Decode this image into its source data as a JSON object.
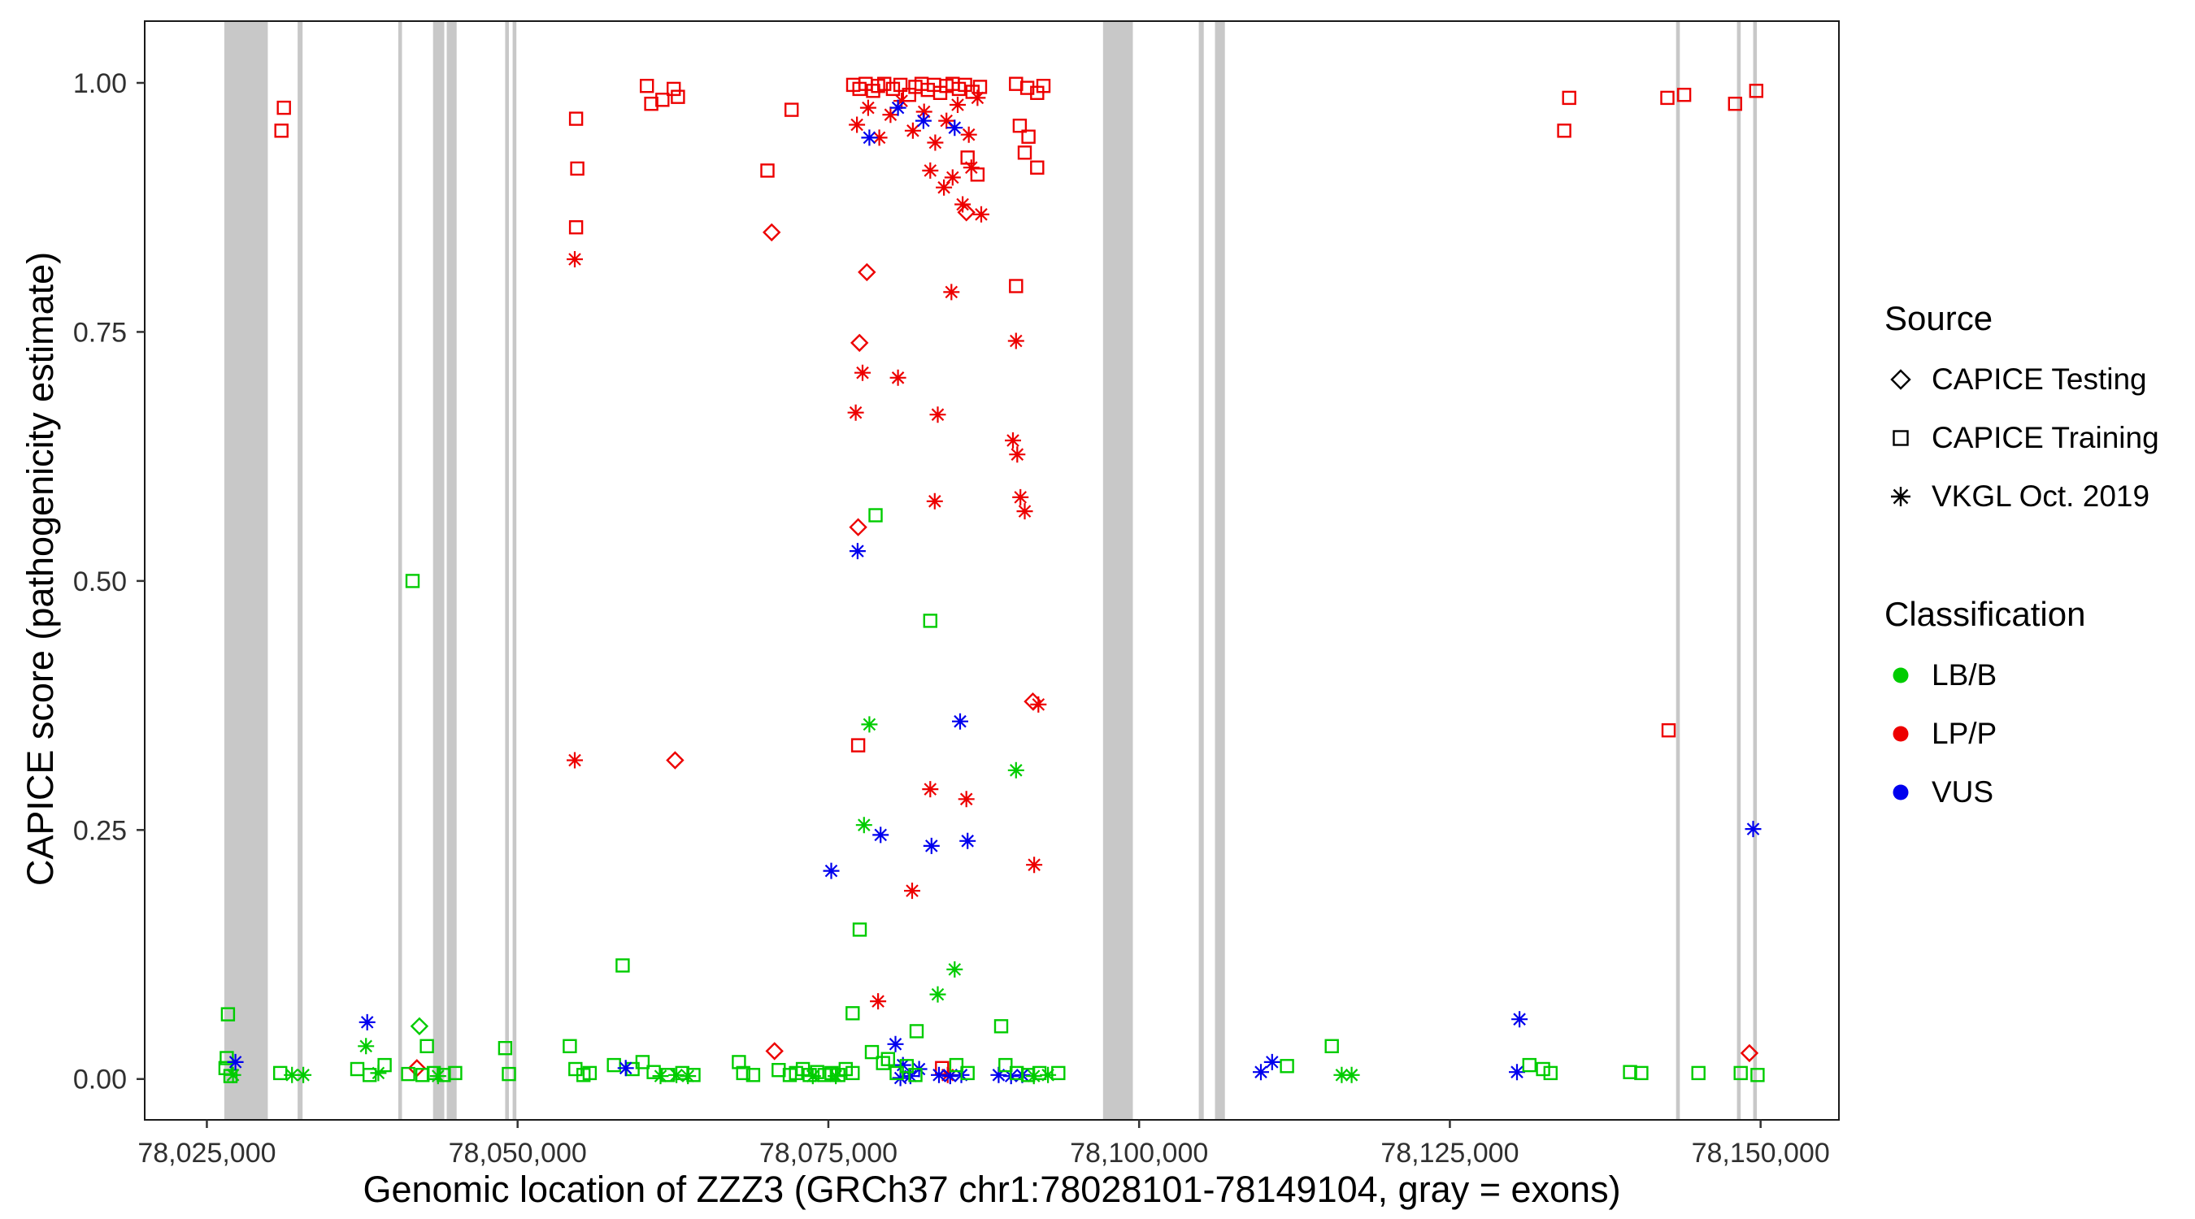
{
  "legend": {
    "source_title": "Source",
    "source_items": [
      {
        "label": "CAPICE Testing",
        "marker": "diamond"
      },
      {
        "label": "CAPICE Training",
        "marker": "square"
      },
      {
        "label": "VKGL Oct. 2019",
        "marker": "asterisk"
      }
    ],
    "classification_title": "Classification",
    "classification_items": [
      {
        "label": "LB/B",
        "color": "#00CC00"
      },
      {
        "label": "LP/P",
        "color": "#ED0000"
      },
      {
        "label": "VUS",
        "color": "#0000EE"
      }
    ]
  },
  "chart_data": {
    "type": "scatter",
    "title": "",
    "xlabel": "Genomic location of ZZZ3 (GRCh37 chr1:78028101-78149104, gray = exons)",
    "ylabel": "CAPICE score (pathogenicity estimate)",
    "xlim": [
      78020000,
      78156300
    ],
    "ylim": [
      -0.041,
      1.062
    ],
    "x_ticks": [
      78025000,
      78050000,
      78075000,
      78100000,
      78125000,
      78150000
    ],
    "x_tick_labels": [
      "78,025,000",
      "78,050,000",
      "78,075,000",
      "78,100,000",
      "78,125,000",
      "78,150,000"
    ],
    "y_ticks": [
      0,
      0.25,
      0.5,
      0.75,
      1.0
    ],
    "y_tick_labels": [
      "0.00",
      "0.25",
      "0.50",
      "0.75",
      "1.00"
    ],
    "grid": "off",
    "legend_position": "right",
    "exon_color": "#C8C8C8",
    "colors": {
      "b": "#00CC00",
      "p": "#ED0000",
      "u": "#0000EE"
    },
    "source_markers": {
      "t": "diamond",
      "r": "square",
      "v": "asterisk"
    },
    "source_names": {
      "t": "CAPICE Testing",
      "r": "CAPICE Training",
      "v": "VKGL Oct. 2019"
    },
    "class_names": {
      "b": "LB/B",
      "p": "LP/P",
      "u": "VUS"
    },
    "exons": [
      [
        78026400,
        78029900
      ],
      [
        78032300,
        78032700
      ],
      [
        78040400,
        78040700
      ],
      [
        78043200,
        78044100
      ],
      [
        78044300,
        78045100
      ],
      [
        78049000,
        78049300
      ],
      [
        78049600,
        78049900
      ],
      [
        78097100,
        78099500
      ],
      [
        78104800,
        78105200
      ],
      [
        78106100,
        78106900
      ],
      [
        78143200,
        78143500
      ],
      [
        78148100,
        78148400
      ],
      [
        78149400,
        78149700
      ]
    ],
    "points_format": [
      "genomic_position",
      "capice_score",
      "source_code",
      "classification_code"
    ],
    "points": [
      [
        78026700,
        0.065,
        "r",
        "b"
      ],
      [
        78026600,
        0.021,
        "r",
        "b"
      ],
      [
        78026500,
        0.011,
        "r",
        "b"
      ],
      [
        78026900,
        0.003,
        "r",
        "b"
      ],
      [
        78027300,
        0.017,
        "v",
        "u"
      ],
      [
        78027100,
        0.004,
        "v",
        "b"
      ],
      [
        78030900,
        0.006,
        "r",
        "b"
      ],
      [
        78031850,
        0.004,
        "v",
        "b"
      ],
      [
        78032760,
        0.004,
        "v",
        "b"
      ],
      [
        78031200,
        0.975,
        "r",
        "p"
      ],
      [
        78031000,
        0.952,
        "r",
        "p"
      ],
      [
        78037900,
        0.057,
        "v",
        "u"
      ],
      [
        78037800,
        0.033,
        "v",
        "b"
      ],
      [
        78037100,
        0.01,
        "r",
        "b"
      ],
      [
        78038100,
        0.004,
        "r",
        "b"
      ],
      [
        78038800,
        0.006,
        "v",
        "b"
      ],
      [
        78039300,
        0.014,
        "r",
        "b"
      ],
      [
        78041550,
        0.5,
        "r",
        "b"
      ],
      [
        78042100,
        0.053,
        "t",
        "b"
      ],
      [
        78042700,
        0.033,
        "r",
        "b"
      ],
      [
        78041900,
        0.011,
        "t",
        "p"
      ],
      [
        78041200,
        0.005,
        "r",
        "b"
      ],
      [
        78042350,
        0.004,
        "r",
        "b"
      ],
      [
        78043260,
        0.006,
        "r",
        "b"
      ],
      [
        78044060,
        0.004,
        "r",
        "b"
      ],
      [
        78044980,
        0.006,
        "r",
        "b"
      ],
      [
        78043600,
        0.003,
        "v",
        "b"
      ],
      [
        78049000,
        0.031,
        "r",
        "b"
      ],
      [
        78049300,
        0.005,
        "r",
        "b"
      ],
      [
        78054700,
        0.964,
        "r",
        "p"
      ],
      [
        78054800,
        0.914,
        "r",
        "p"
      ],
      [
        78054700,
        0.855,
        "r",
        "p"
      ],
      [
        78054600,
        0.823,
        "v",
        "p"
      ],
      [
        78054600,
        0.32,
        "v",
        "p"
      ],
      [
        78054200,
        0.033,
        "r",
        "b"
      ],
      [
        78054650,
        0.01,
        "r",
        "b"
      ],
      [
        78055300,
        0.004,
        "r",
        "b"
      ],
      [
        78055800,
        0.006,
        "r",
        "b"
      ],
      [
        78058450,
        0.114,
        "r",
        "b"
      ],
      [
        78060400,
        0.997,
        "r",
        "p"
      ],
      [
        78060750,
        0.979,
        "r",
        "p"
      ],
      [
        78061650,
        0.983,
        "r",
        "p"
      ],
      [
        78062560,
        0.994,
        "r",
        "p"
      ],
      [
        78062900,
        0.986,
        "r",
        "p"
      ],
      [
        78062670,
        0.32,
        "t",
        "p"
      ],
      [
        78057750,
        0.014,
        "r",
        "b"
      ],
      [
        78059250,
        0.01,
        "r",
        "b"
      ],
      [
        78060050,
        0.017,
        "r",
        "b"
      ],
      [
        78060950,
        0.007,
        "r",
        "b"
      ],
      [
        78062100,
        0.004,
        "r",
        "b"
      ],
      [
        78063250,
        0.006,
        "r",
        "b"
      ],
      [
        78064150,
        0.004,
        "r",
        "b"
      ],
      [
        78058700,
        0.011,
        "v",
        "u"
      ],
      [
        78061500,
        0.003,
        "v",
        "b"
      ],
      [
        78062780,
        0.004,
        "v",
        "b"
      ],
      [
        78063700,
        0.003,
        "v",
        "b"
      ],
      [
        78067800,
        0.017,
        "r",
        "b"
      ],
      [
        78068150,
        0.006,
        "r",
        "b"
      ],
      [
        78068950,
        0.004,
        "r",
        "b"
      ],
      [
        78070100,
        0.912,
        "r",
        "p"
      ],
      [
        78070440,
        0.85,
        "t",
        "p"
      ],
      [
        78072040,
        0.973,
        "r",
        "p"
      ],
      [
        78070670,
        0.028,
        "t",
        "p"
      ],
      [
        78071000,
        0.009,
        "r",
        "b"
      ],
      [
        78071900,
        0.004,
        "r",
        "b"
      ],
      [
        78072400,
        0.006,
        "r",
        "b"
      ],
      [
        78072950,
        0.01,
        "r",
        "b"
      ],
      [
        78073500,
        0.004,
        "r",
        "b"
      ],
      [
        78074100,
        0.007,
        "r",
        "b"
      ],
      [
        78074700,
        0.004,
        "r",
        "b"
      ],
      [
        78075250,
        0.006,
        "r",
        "b"
      ],
      [
        78075800,
        0.004,
        "r",
        "b"
      ],
      [
        78076400,
        0.01,
        "r",
        "b"
      ],
      [
        78076950,
        0.006,
        "r",
        "b"
      ],
      [
        78073750,
        0.003,
        "v",
        "b"
      ],
      [
        78075600,
        0.003,
        "v",
        "b"
      ],
      [
        78075230,
        0.209,
        "v",
        "u"
      ],
      [
        78076950,
        0.066,
        "r",
        "b"
      ],
      [
        78077520,
        0.15,
        "r",
        "b"
      ],
      [
        78077400,
        0.335,
        "r",
        "p"
      ],
      [
        78077400,
        0.554,
        "t",
        "p"
      ],
      [
        78077350,
        0.53,
        "v",
        "u"
      ],
      [
        78077500,
        0.739,
        "t",
        "p"
      ],
      [
        78077750,
        0.709,
        "v",
        "p"
      ],
      [
        78077200,
        0.669,
        "v",
        "p"
      ],
      [
        78078100,
        0.81,
        "t",
        "p"
      ],
      [
        78078800,
        0.566,
        "r",
        "b"
      ],
      [
        78078300,
        0.356,
        "v",
        "b"
      ],
      [
        78077870,
        0.255,
        "v",
        "b"
      ],
      [
        78079200,
        0.245,
        "v",
        "u"
      ],
      [
        78079000,
        0.078,
        "v",
        "p"
      ],
      [
        78078500,
        0.027,
        "r",
        "b"
      ],
      [
        78079400,
        0.016,
        "r",
        "b"
      ],
      [
        78077000,
        0.998,
        "r",
        "p"
      ],
      [
        78077500,
        0.994,
        "r",
        "p"
      ],
      [
        78078000,
        0.999,
        "r",
        "p"
      ],
      [
        78078600,
        0.992,
        "r",
        "p"
      ],
      [
        78079000,
        0.997,
        "r",
        "p"
      ],
      [
        78079500,
        0.999,
        "r",
        "p"
      ],
      [
        78080200,
        0.994,
        "r",
        "p"
      ],
      [
        78080800,
        0.998,
        "r",
        "p"
      ],
      [
        78081500,
        0.988,
        "r",
        "p"
      ],
      [
        78082000,
        0.996,
        "r",
        "p"
      ],
      [
        78082500,
        0.999,
        "r",
        "p"
      ],
      [
        78083000,
        0.993,
        "r",
        "p"
      ],
      [
        78083500,
        0.998,
        "r",
        "p"
      ],
      [
        78084000,
        0.99,
        "r",
        "p"
      ],
      [
        78084500,
        0.997,
        "r",
        "p"
      ],
      [
        78085000,
        0.999,
        "r",
        "p"
      ],
      [
        78085500,
        0.994,
        "r",
        "p"
      ],
      [
        78086000,
        0.998,
        "r",
        "p"
      ],
      [
        78086600,
        0.991,
        "r",
        "p"
      ],
      [
        78087200,
        0.996,
        "r",
        "p"
      ],
      [
        78077300,
        0.958,
        "v",
        "p"
      ],
      [
        78078200,
        0.975,
        "v",
        "p"
      ],
      [
        78079100,
        0.945,
        "v",
        "p"
      ],
      [
        78080000,
        0.968,
        "v",
        "p"
      ],
      [
        78080900,
        0.982,
        "v",
        "p"
      ],
      [
        78081800,
        0.952,
        "v",
        "p"
      ],
      [
        78082700,
        0.971,
        "v",
        "p"
      ],
      [
        78083600,
        0.94,
        "v",
        "p"
      ],
      [
        78084500,
        0.962,
        "v",
        "p"
      ],
      [
        78085400,
        0.978,
        "v",
        "p"
      ],
      [
        78086300,
        0.948,
        "v",
        "p"
      ],
      [
        78087000,
        0.985,
        "v",
        "p"
      ],
      [
        78078300,
        0.945,
        "v",
        "u"
      ],
      [
        78080600,
        0.975,
        "v",
        "u"
      ],
      [
        78082650,
        0.962,
        "v",
        "u"
      ],
      [
        78085160,
        0.955,
        "v",
        "u"
      ],
      [
        78083200,
        0.912,
        "v",
        "p"
      ],
      [
        78084300,
        0.895,
        "v",
        "p"
      ],
      [
        78085000,
        0.905,
        "v",
        "p"
      ],
      [
        78085800,
        0.878,
        "v",
        "p"
      ],
      [
        78086500,
        0.915,
        "v",
        "p"
      ],
      [
        78087300,
        0.868,
        "v",
        "p"
      ],
      [
        78086100,
        0.87,
        "t",
        "p"
      ],
      [
        78086200,
        0.925,
        "r",
        "p"
      ],
      [
        78087000,
        0.908,
        "r",
        "p"
      ],
      [
        78080600,
        0.704,
        "v",
        "p"
      ],
      [
        78083800,
        0.667,
        "v",
        "p"
      ],
      [
        78083560,
        0.58,
        "v",
        "p"
      ],
      [
        78083200,
        0.46,
        "r",
        "b"
      ],
      [
        78083200,
        0.291,
        "v",
        "p"
      ],
      [
        78083300,
        0.234,
        "v",
        "u"
      ],
      [
        78081740,
        0.189,
        "v",
        "p"
      ],
      [
        78083800,
        0.085,
        "v",
        "b"
      ],
      [
        78085160,
        0.11,
        "v",
        "b"
      ],
      [
        78084900,
        0.79,
        "v",
        "p"
      ],
      [
        78085600,
        0.359,
        "v",
        "u"
      ],
      [
        78086100,
        0.281,
        "v",
        "p"
      ],
      [
        78086200,
        0.239,
        "v",
        "u"
      ],
      [
        78082100,
        0.048,
        "r",
        "b"
      ],
      [
        78080400,
        0.035,
        "v",
        "u"
      ],
      [
        78081000,
        0.014,
        "v",
        "u"
      ],
      [
        78081600,
        0.003,
        "v",
        "u"
      ],
      [
        78082300,
        0.01,
        "v",
        "u"
      ],
      [
        78080800,
        0.001,
        "v",
        "u"
      ],
      [
        78079800,
        0.02,
        "r",
        "b"
      ],
      [
        78080500,
        0.006,
        "r",
        "b"
      ],
      [
        78081300,
        0.013,
        "r",
        "b"
      ],
      [
        78082000,
        0.004,
        "r",
        "b"
      ],
      [
        78084150,
        0.011,
        "r",
        "p"
      ],
      [
        78084600,
        0.004,
        "v",
        "p"
      ],
      [
        78083900,
        0.004,
        "v",
        "u"
      ],
      [
        78084800,
        0.003,
        "v",
        "u"
      ],
      [
        78085700,
        0.004,
        "v",
        "u"
      ],
      [
        78085300,
        0.014,
        "r",
        "b"
      ],
      [
        78086200,
        0.006,
        "r",
        "b"
      ],
      [
        78090100,
        0.999,
        "r",
        "p"
      ],
      [
        78091000,
        0.995,
        "r",
        "p"
      ],
      [
        78091800,
        0.99,
        "r",
        "p"
      ],
      [
        78092300,
        0.997,
        "r",
        "p"
      ],
      [
        78090400,
        0.957,
        "r",
        "p"
      ],
      [
        78091100,
        0.946,
        "r",
        "p"
      ],
      [
        78091800,
        0.915,
        "r",
        "p"
      ],
      [
        78090800,
        0.93,
        "r",
        "p"
      ],
      [
        78090100,
        0.796,
        "r",
        "p"
      ],
      [
        78090100,
        0.741,
        "v",
        "p"
      ],
      [
        78089850,
        0.641,
        "v",
        "p"
      ],
      [
        78090200,
        0.627,
        "v",
        "p"
      ],
      [
        78090450,
        0.584,
        "v",
        "p"
      ],
      [
        78090800,
        0.57,
        "v",
        "p"
      ],
      [
        78091450,
        0.379,
        "t",
        "p"
      ],
      [
        78091900,
        0.376,
        "v",
        "p"
      ],
      [
        78090100,
        0.31,
        "v",
        "b"
      ],
      [
        78091560,
        0.215,
        "v",
        "p"
      ],
      [
        78088900,
        0.053,
        "r",
        "b"
      ],
      [
        78088700,
        0.004,
        "v",
        "u"
      ],
      [
        78089700,
        0.003,
        "v",
        "u"
      ],
      [
        78090600,
        0.004,
        "v",
        "u"
      ],
      [
        78089250,
        0.014,
        "r",
        "b"
      ],
      [
        78090150,
        0.006,
        "r",
        "b"
      ],
      [
        78091070,
        0.004,
        "r",
        "b"
      ],
      [
        78091980,
        0.006,
        "r",
        "b"
      ],
      [
        78091530,
        0.003,
        "v",
        "b"
      ],
      [
        78092670,
        0.004,
        "v",
        "b"
      ],
      [
        78093500,
        0.006,
        "r",
        "b"
      ],
      [
        78109800,
        0.007,
        "v",
        "u"
      ],
      [
        78110700,
        0.017,
        "v",
        "u"
      ],
      [
        78111900,
        0.013,
        "r",
        "b"
      ],
      [
        78115500,
        0.033,
        "r",
        "b"
      ],
      [
        78116300,
        0.004,
        "v",
        "b"
      ],
      [
        78117100,
        0.004,
        "v",
        "b"
      ],
      [
        78130600,
        0.06,
        "v",
        "u"
      ],
      [
        78130400,
        0.007,
        "v",
        "u"
      ],
      [
        78131400,
        0.014,
        "r",
        "b"
      ],
      [
        78132500,
        0.01,
        "r",
        "b"
      ],
      [
        78133100,
        0.006,
        "r",
        "b"
      ],
      [
        78134600,
        0.985,
        "r",
        "p"
      ],
      [
        78134200,
        0.952,
        "r",
        "p"
      ],
      [
        78139500,
        0.007,
        "r",
        "b"
      ],
      [
        78140400,
        0.006,
        "r",
        "b"
      ],
      [
        78142500,
        0.985,
        "r",
        "p"
      ],
      [
        78143850,
        0.988,
        "r",
        "p"
      ],
      [
        78142600,
        0.35,
        "r",
        "p"
      ],
      [
        78145000,
        0.006,
        "r",
        "b"
      ],
      [
        78147950,
        0.979,
        "r",
        "p"
      ],
      [
        78149650,
        0.992,
        "r",
        "p"
      ],
      [
        78149400,
        0.251,
        "v",
        "u"
      ],
      [
        78149100,
        0.026,
        "t",
        "p"
      ],
      [
        78148400,
        0.006,
        "r",
        "b"
      ],
      [
        78149750,
        0.004,
        "r",
        "b"
      ]
    ]
  }
}
